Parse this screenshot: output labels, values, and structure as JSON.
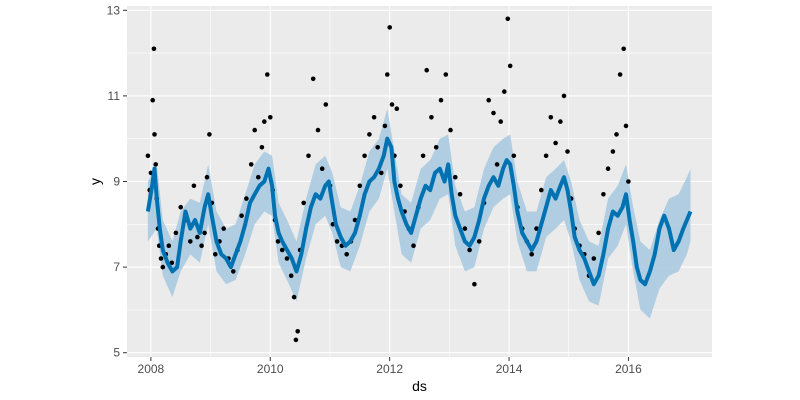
{
  "chart_data": {
    "type": "scatter",
    "title": "",
    "xlabel": "ds",
    "ylabel": "y",
    "xlim": [
      2007.6,
      2017.4
    ],
    "ylim": [
      4.9,
      13.1
    ],
    "x_ticks": [
      {
        "value": 2008,
        "label": "2008"
      },
      {
        "value": 2010,
        "label": "2010"
      },
      {
        "value": 2012,
        "label": "2012"
      },
      {
        "value": 2014,
        "label": "2014"
      },
      {
        "value": 2016,
        "label": "2016"
      }
    ],
    "y_ticks": [
      {
        "value": 5,
        "label": "5"
      },
      {
        "value": 7,
        "label": "7"
      },
      {
        "value": 9,
        "label": "9"
      },
      {
        "value": 11,
        "label": "11"
      },
      {
        "value": 13,
        "label": "13"
      }
    ],
    "grid": true,
    "legend": "none",
    "colors": {
      "panel": "#ebebeb",
      "grid_major": "#ffffff",
      "points": "#000000",
      "forecast_line": "#0072b2",
      "uncertainty_band": "#a6c8e0"
    },
    "series": [
      {
        "role": "observed",
        "mark": "point",
        "x": [
          2007.95,
          2007.98,
          2008.0,
          2008.03,
          2008.05,
          2008.06,
          2008.08,
          2008.1,
          2008.12,
          2008.14,
          2008.17,
          2008.2,
          2008.25,
          2008.3,
          2008.35,
          2008.42,
          2008.5,
          2008.58,
          2008.66,
          2008.72,
          2008.78,
          2008.85,
          2008.9,
          2008.94,
          2008.98,
          2009.02,
          2009.08,
          2009.15,
          2009.22,
          2009.3,
          2009.38,
          2009.45,
          2009.52,
          2009.6,
          2009.68,
          2009.74,
          2009.8,
          2009.86,
          2009.9,
          2009.95,
          2010.0,
          2010.04,
          2010.08,
          2010.13,
          2010.2,
          2010.28,
          2010.35,
          2010.4,
          2010.43,
          2010.46,
          2010.5,
          2010.56,
          2010.64,
          2010.72,
          2010.8,
          2010.87,
          2010.93,
          2011.0,
          2011.05,
          2011.12,
          2011.2,
          2011.28,
          2011.35,
          2011.42,
          2011.5,
          2011.58,
          2011.66,
          2011.74,
          2011.8,
          2011.86,
          2011.92,
          2011.96,
          2012.0,
          2012.04,
          2012.08,
          2012.12,
          2012.18,
          2012.25,
          2012.32,
          2012.4,
          2012.48,
          2012.56,
          2012.62,
          2012.7,
          2012.78,
          2012.86,
          2012.94,
          2013.02,
          2013.1,
          2013.18,
          2013.26,
          2013.34,
          2013.42,
          2013.5,
          2013.58,
          2013.66,
          2013.74,
          2013.8,
          2013.86,
          2013.92,
          2013.98,
          2014.02,
          2014.08,
          2014.14,
          2014.22,
          2014.3,
          2014.38,
          2014.46,
          2014.54,
          2014.62,
          2014.7,
          2014.78,
          2014.86,
          2014.92,
          2014.98,
          2015.04,
          2015.1,
          2015.18,
          2015.26,
          2015.34,
          2015.42,
          2015.5,
          2015.58,
          2015.66,
          2015.74,
          2015.8,
          2015.86,
          2015.92,
          2015.96,
          2016.0
        ],
        "y": [
          9.6,
          8.8,
          9.2,
          10.9,
          12.1,
          10.1,
          9.4,
          8.6,
          7.9,
          7.5,
          7.2,
          7.0,
          7.3,
          7.5,
          7.1,
          7.8,
          8.4,
          8.1,
          7.6,
          8.9,
          7.7,
          7.5,
          7.8,
          9.1,
          10.1,
          8.5,
          7.3,
          7.6,
          7.9,
          7.2,
          6.9,
          7.4,
          8.2,
          8.6,
          9.4,
          10.2,
          9.1,
          9.8,
          10.4,
          11.5,
          10.5,
          8.8,
          8.1,
          7.6,
          7.4,
          7.2,
          6.8,
          6.3,
          5.3,
          5.5,
          7.4,
          8.5,
          9.6,
          11.4,
          10.2,
          9.3,
          10.8,
          8.9,
          8.0,
          7.6,
          7.5,
          7.3,
          7.6,
          8.1,
          8.9,
          9.6,
          10.1,
          10.5,
          9.8,
          9.2,
          10.3,
          11.5,
          12.6,
          10.8,
          9.6,
          10.7,
          8.9,
          8.3,
          7.9,
          7.5,
          8.4,
          9.6,
          11.6,
          10.5,
          9.8,
          10.9,
          11.5,
          10.2,
          9.1,
          8.7,
          7.9,
          7.4,
          6.6,
          7.6,
          8.5,
          10.9,
          10.6,
          9.4,
          10.4,
          11.1,
          12.8,
          11.7,
          9.6,
          8.4,
          7.9,
          7.6,
          7.3,
          7.9,
          8.8,
          9.6,
          10.5,
          9.9,
          10.4,
          11.0,
          9.7,
          8.6,
          7.9,
          7.5,
          7.3,
          6.8,
          7.2,
          7.8,
          8.7,
          9.3,
          9.7,
          10.1,
          11.5,
          12.1,
          10.3,
          9.0
        ]
      },
      {
        "role": "fitted",
        "mark": "line",
        "x": [
          2007.95,
          2008.02,
          2008.06,
          2008.1,
          2008.15,
          2008.2,
          2008.28,
          2008.36,
          2008.44,
          2008.5,
          2008.58,
          2008.66,
          2008.74,
          2008.82,
          2008.9,
          2008.96,
          2009.02,
          2009.1,
          2009.18,
          2009.26,
          2009.34,
          2009.42,
          2009.5,
          2009.58,
          2009.66,
          2009.74,
          2009.82,
          2009.9,
          2009.97,
          2010.03,
          2010.08,
          2010.14,
          2010.2,
          2010.28,
          2010.36,
          2010.44,
          2010.52,
          2010.6,
          2010.68,
          2010.76,
          2010.84,
          2010.92,
          2010.98,
          2011.04,
          2011.1,
          2011.18,
          2011.26,
          2011.34,
          2011.42,
          2011.5,
          2011.58,
          2011.66,
          2011.74,
          2011.82,
          2011.9,
          2011.96,
          2012.03,
          2012.08,
          2012.14,
          2012.2,
          2012.28,
          2012.36,
          2012.44,
          2012.52,
          2012.6,
          2012.68,
          2012.76,
          2012.84,
          2012.92,
          2012.98,
          2013.04,
          2013.1,
          2013.18,
          2013.26,
          2013.34,
          2013.42,
          2013.5,
          2013.58,
          2013.66,
          2013.74,
          2013.82,
          2013.9,
          2013.96,
          2014.02,
          2014.08,
          2014.14,
          2014.22,
          2014.3,
          2014.38,
          2014.46,
          2014.54,
          2014.62,
          2014.7,
          2014.78,
          2014.86,
          2014.92,
          2014.98,
          2015.04,
          2015.1,
          2015.18,
          2015.26,
          2015.34,
          2015.42,
          2015.5,
          2015.58,
          2015.66,
          2015.74,
          2015.82,
          2015.9,
          2015.96,
          2016.02,
          2016.08,
          2016.14,
          2016.2,
          2016.28,
          2016.36,
          2016.44,
          2016.52,
          2016.6,
          2016.68,
          2016.76,
          2016.84,
          2016.92,
          2016.98,
          2017.04
        ],
        "y": [
          8.3,
          8.9,
          9.3,
          8.6,
          7.9,
          7.4,
          7.1,
          6.9,
          7.0,
          7.6,
          8.3,
          7.9,
          8.1,
          7.8,
          8.4,
          8.7,
          8.2,
          7.6,
          7.3,
          7.2,
          7.0,
          7.3,
          7.6,
          8.0,
          8.5,
          8.7,
          8.9,
          9.0,
          9.3,
          8.9,
          8.2,
          7.8,
          7.6,
          7.4,
          7.2,
          6.9,
          7.3,
          7.9,
          8.4,
          8.7,
          8.6,
          8.9,
          9.0,
          8.5,
          8.0,
          7.7,
          7.5,
          7.6,
          7.8,
          8.2,
          8.7,
          9.0,
          9.1,
          9.3,
          9.6,
          10.0,
          9.8,
          9.0,
          8.6,
          8.3,
          8.0,
          7.8,
          8.2,
          8.6,
          8.9,
          8.8,
          9.2,
          9.3,
          9.0,
          9.4,
          8.7,
          8.2,
          7.9,
          7.6,
          7.5,
          7.7,
          8.1,
          8.6,
          8.9,
          9.1,
          8.9,
          9.3,
          9.5,
          9.4,
          8.9,
          8.3,
          7.8,
          7.6,
          7.4,
          7.6,
          8.0,
          8.4,
          8.8,
          8.6,
          8.9,
          9.1,
          8.8,
          8.3,
          7.7,
          7.4,
          7.2,
          6.9,
          6.6,
          6.8,
          7.3,
          7.9,
          8.3,
          8.2,
          8.4,
          8.7,
          8.1,
          7.6,
          7.0,
          6.7,
          6.6,
          6.9,
          7.3,
          7.9,
          8.2,
          7.9,
          7.4,
          7.6,
          7.9,
          8.1,
          8.3
        ]
      }
    ],
    "uncertainty_band": {
      "x": [
        2007.95,
        2008.1,
        2008.2,
        2008.36,
        2008.5,
        2008.66,
        2008.82,
        2008.96,
        2009.1,
        2009.26,
        2009.42,
        2009.58,
        2009.74,
        2009.9,
        2010.03,
        2010.14,
        2010.28,
        2010.44,
        2010.6,
        2010.76,
        2010.92,
        2011.04,
        2011.18,
        2011.34,
        2011.5,
        2011.66,
        2011.82,
        2011.96,
        2012.08,
        2012.2,
        2012.36,
        2012.52,
        2012.68,
        2012.84,
        2012.98,
        2013.1,
        2013.26,
        2013.42,
        2013.58,
        2013.74,
        2013.9,
        2014.02,
        2014.14,
        2014.3,
        2014.46,
        2014.62,
        2014.78,
        2014.92,
        2015.04,
        2015.18,
        2015.34,
        2015.5,
        2015.66,
        2015.82,
        2015.96,
        2016.08,
        2016.2,
        2016.36,
        2016.52,
        2016.68,
        2016.84,
        2016.98,
        2017.04
      ],
      "lower": [
        7.6,
        7.9,
        6.8,
        6.3,
        6.9,
        7.3,
        7.1,
        8.0,
        6.9,
        6.6,
        6.7,
        7.3,
        8.0,
        8.3,
        8.2,
        7.1,
        6.7,
        6.2,
        7.2,
        8.0,
        8.2,
        7.8,
        7.0,
        6.9,
        7.5,
        8.3,
        8.6,
        9.3,
        8.3,
        7.3,
        7.1,
        7.9,
        8.1,
        8.6,
        8.7,
        7.5,
        6.9,
        7.0,
        7.9,
        8.4,
        8.6,
        8.7,
        7.6,
        6.9,
        6.9,
        7.7,
        7.9,
        8.1,
        7.6,
        6.7,
        6.2,
        6.1,
        7.2,
        7.5,
        8.0,
        6.9,
        6.0,
        5.8,
        6.5,
        6.8,
        6.9,
        7.3,
        7.6
      ],
      "upper": [
        9.0,
        9.4,
        8.1,
        7.6,
        8.3,
        8.6,
        8.5,
        9.4,
        8.3,
        7.9,
        8.0,
        8.7,
        9.4,
        9.7,
        9.6,
        8.5,
        8.1,
        7.6,
        8.6,
        9.4,
        9.6,
        9.2,
        8.4,
        8.3,
        8.9,
        9.7,
        10.0,
        10.7,
        9.7,
        8.7,
        8.5,
        9.3,
        9.5,
        10.0,
        10.1,
        8.9,
        8.3,
        8.4,
        9.3,
        9.8,
        10.0,
        10.1,
        9.0,
        8.3,
        8.3,
        9.1,
        9.3,
        9.5,
        9.0,
        8.1,
        7.6,
        7.5,
        8.6,
        8.9,
        9.4,
        8.4,
        7.6,
        7.4,
        8.1,
        8.6,
        8.7,
        9.1,
        9.3
      ]
    }
  }
}
